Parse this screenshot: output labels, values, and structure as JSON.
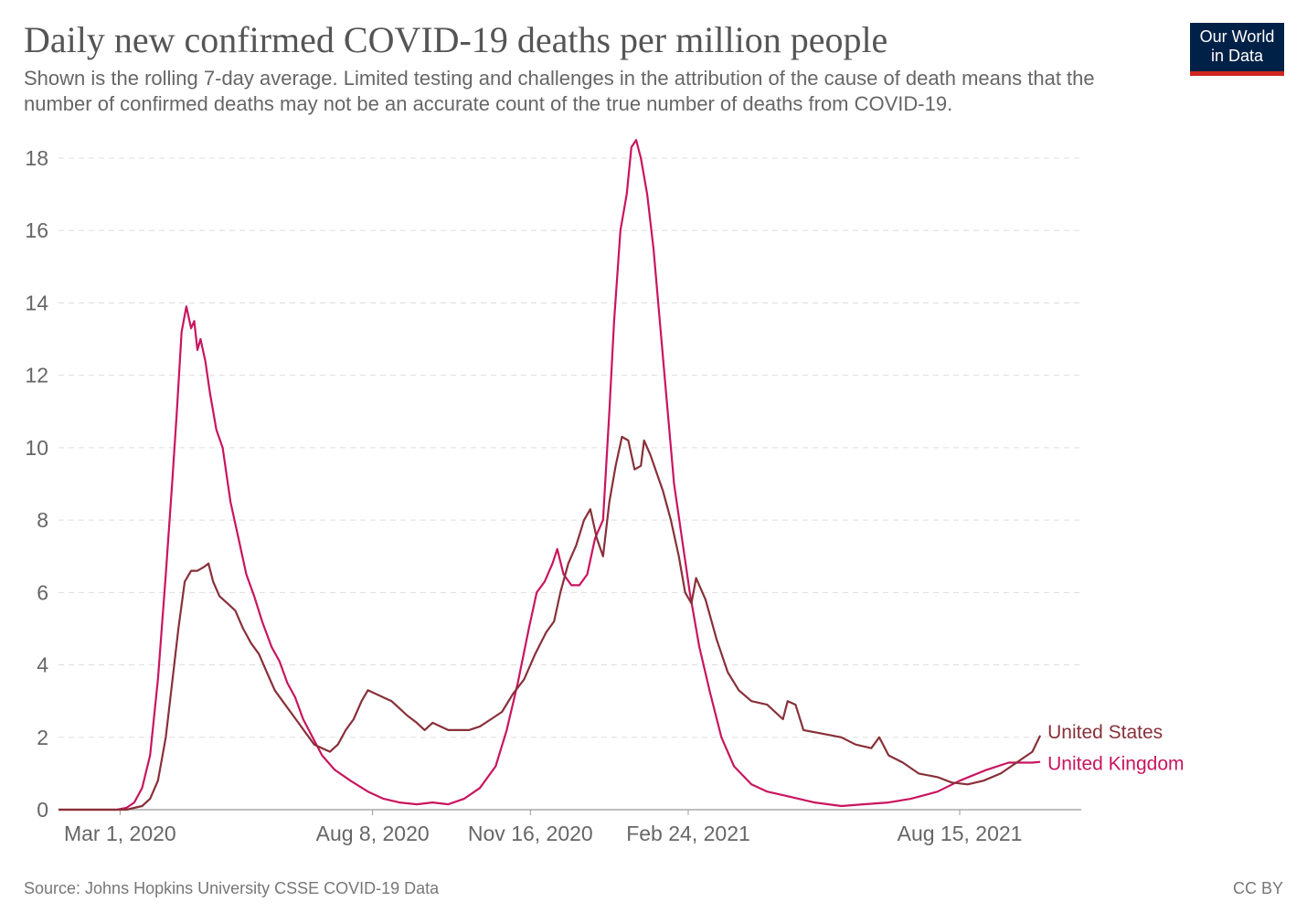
{
  "title": "Daily new confirmed COVID-19 deaths per million people",
  "subtitle": "Shown is the rolling 7-day average. Limited testing and challenges in the attribution of the cause of death means that the number of confirmed deaths may not be an accurate count of the true number of deaths from COVID-19.",
  "logo": {
    "line1": "Our World",
    "line2": "in Data",
    "bg_color": "#002147",
    "accent_color": "#ce261e"
  },
  "source": "Source: Johns Hopkins University CSSE COVID-19 Data",
  "license": "CC BY",
  "chart_data": {
    "type": "line",
    "title": "Daily new confirmed COVID-19 deaths per million people",
    "xlabel": "",
    "ylabel": "",
    "x_range": [
      "2020-01-22",
      "2021-10-31"
    ],
    "ylim": [
      0,
      18
    ],
    "y_ticks": [
      0,
      2,
      4,
      6,
      8,
      10,
      12,
      14,
      16,
      18
    ],
    "x_ticks": [
      {
        "date": "2020-03-01",
        "label": "Mar 1, 2020"
      },
      {
        "date": "2020-08-08",
        "label": "Aug 8, 2020"
      },
      {
        "date": "2020-11-16",
        "label": "Nov 16, 2020"
      },
      {
        "date": "2021-02-24",
        "label": "Feb 24, 2021"
      },
      {
        "date": "2021-08-15",
        "label": "Aug 15, 2021"
      }
    ],
    "grid": "horizontal dashed",
    "legend": "right, inline at line ends",
    "series": [
      {
        "name": "United Kingdom",
        "color": "#c8155f",
        "points": [
          [
            "2020-01-22",
            0
          ],
          [
            "2020-02-28",
            0
          ],
          [
            "2020-03-05",
            0.05
          ],
          [
            "2020-03-10",
            0.2
          ],
          [
            "2020-03-15",
            0.6
          ],
          [
            "2020-03-20",
            1.5
          ],
          [
            "2020-03-25",
            3.6
          ],
          [
            "2020-03-30",
            6.5
          ],
          [
            "2020-04-03",
            9.0
          ],
          [
            "2020-04-06",
            11.0
          ],
          [
            "2020-04-09",
            13.2
          ],
          [
            "2020-04-12",
            13.9
          ],
          [
            "2020-04-15",
            13.3
          ],
          [
            "2020-04-17",
            13.5
          ],
          [
            "2020-04-19",
            12.7
          ],
          [
            "2020-04-21",
            13.0
          ],
          [
            "2020-04-24",
            12.4
          ],
          [
            "2020-04-27",
            11.5
          ],
          [
            "2020-05-01",
            10.5
          ],
          [
            "2020-05-05",
            10.0
          ],
          [
            "2020-05-10",
            8.5
          ],
          [
            "2020-05-15",
            7.5
          ],
          [
            "2020-05-20",
            6.5
          ],
          [
            "2020-05-25",
            5.9
          ],
          [
            "2020-05-30",
            5.2
          ],
          [
            "2020-06-05",
            4.5
          ],
          [
            "2020-06-10",
            4.1
          ],
          [
            "2020-06-15",
            3.5
          ],
          [
            "2020-06-20",
            3.1
          ],
          [
            "2020-06-25",
            2.5
          ],
          [
            "2020-07-01",
            2.0
          ],
          [
            "2020-07-07",
            1.5
          ],
          [
            "2020-07-15",
            1.1
          ],
          [
            "2020-07-25",
            0.8
          ],
          [
            "2020-08-05",
            0.5
          ],
          [
            "2020-08-15",
            0.3
          ],
          [
            "2020-08-25",
            0.2
          ],
          [
            "2020-09-05",
            0.15
          ],
          [
            "2020-09-15",
            0.2
          ],
          [
            "2020-09-25",
            0.15
          ],
          [
            "2020-10-05",
            0.3
          ],
          [
            "2020-10-15",
            0.6
          ],
          [
            "2020-10-25",
            1.2
          ],
          [
            "2020-11-01",
            2.2
          ],
          [
            "2020-11-08",
            3.5
          ],
          [
            "2020-11-15",
            5.0
          ],
          [
            "2020-11-20",
            6.0
          ],
          [
            "2020-11-25",
            6.3
          ],
          [
            "2020-11-30",
            6.8
          ],
          [
            "2020-12-03",
            7.2
          ],
          [
            "2020-12-07",
            6.5
          ],
          [
            "2020-12-12",
            6.2
          ],
          [
            "2020-12-17",
            6.2
          ],
          [
            "2020-12-22",
            6.5
          ],
          [
            "2020-12-27",
            7.5
          ],
          [
            "2021-01-01",
            8.0
          ],
          [
            "2021-01-05",
            11.0
          ],
          [
            "2021-01-08",
            13.5
          ],
          [
            "2021-01-12",
            16.0
          ],
          [
            "2021-01-16",
            17.0
          ],
          [
            "2021-01-19",
            18.3
          ],
          [
            "2021-01-22",
            18.5
          ],
          [
            "2021-01-25",
            18.0
          ],
          [
            "2021-01-29",
            17.0
          ],
          [
            "2021-02-02",
            15.5
          ],
          [
            "2021-02-06",
            13.5
          ],
          [
            "2021-02-10",
            11.5
          ],
          [
            "2021-02-15",
            9.0
          ],
          [
            "2021-02-20",
            7.5
          ],
          [
            "2021-02-25",
            6.0
          ],
          [
            "2021-03-03",
            4.5
          ],
          [
            "2021-03-10",
            3.2
          ],
          [
            "2021-03-17",
            2.0
          ],
          [
            "2021-03-25",
            1.2
          ],
          [
            "2021-04-05",
            0.7
          ],
          [
            "2021-04-15",
            0.5
          ],
          [
            "2021-04-30",
            0.35
          ],
          [
            "2021-05-15",
            0.2
          ],
          [
            "2021-06-01",
            0.1
          ],
          [
            "2021-06-15",
            0.15
          ],
          [
            "2021-07-01",
            0.2
          ],
          [
            "2021-07-15",
            0.3
          ],
          [
            "2021-08-01",
            0.5
          ],
          [
            "2021-08-15",
            0.8
          ],
          [
            "2021-09-01",
            1.1
          ],
          [
            "2021-09-15",
            1.3
          ],
          [
            "2021-09-30",
            1.3
          ],
          [
            "2021-10-05",
            1.32
          ]
        ]
      },
      {
        "name": "United States",
        "color": "#883039",
        "points": [
          [
            "2020-01-22",
            0
          ],
          [
            "2020-03-05",
            0
          ],
          [
            "2020-03-10",
            0.05
          ],
          [
            "2020-03-15",
            0.1
          ],
          [
            "2020-03-20",
            0.3
          ],
          [
            "2020-03-25",
            0.8
          ],
          [
            "2020-03-30",
            2.0
          ],
          [
            "2020-04-03",
            3.5
          ],
          [
            "2020-04-07",
            5.0
          ],
          [
            "2020-04-11",
            6.3
          ],
          [
            "2020-04-15",
            6.6
          ],
          [
            "2020-04-19",
            6.6
          ],
          [
            "2020-04-23",
            6.7
          ],
          [
            "2020-04-26",
            6.8
          ],
          [
            "2020-04-29",
            6.3
          ],
          [
            "2020-05-03",
            5.9
          ],
          [
            "2020-05-08",
            5.7
          ],
          [
            "2020-05-13",
            5.5
          ],
          [
            "2020-05-18",
            5.0
          ],
          [
            "2020-05-23",
            4.6
          ],
          [
            "2020-05-28",
            4.3
          ],
          [
            "2020-06-02",
            3.8
          ],
          [
            "2020-06-07",
            3.3
          ],
          [
            "2020-06-12",
            3.0
          ],
          [
            "2020-06-17",
            2.7
          ],
          [
            "2020-06-22",
            2.4
          ],
          [
            "2020-06-27",
            2.1
          ],
          [
            "2020-07-02",
            1.8
          ],
          [
            "2020-07-07",
            1.7
          ],
          [
            "2020-07-12",
            1.6
          ],
          [
            "2020-07-17",
            1.8
          ],
          [
            "2020-07-22",
            2.2
          ],
          [
            "2020-07-27",
            2.5
          ],
          [
            "2020-08-01",
            3.0
          ],
          [
            "2020-08-05",
            3.3
          ],
          [
            "2020-08-10",
            3.2
          ],
          [
            "2020-08-15",
            3.1
          ],
          [
            "2020-08-20",
            3.0
          ],
          [
            "2020-08-25",
            2.8
          ],
          [
            "2020-08-30",
            2.6
          ],
          [
            "2020-09-05",
            2.4
          ],
          [
            "2020-09-10",
            2.2
          ],
          [
            "2020-09-15",
            2.4
          ],
          [
            "2020-09-20",
            2.3
          ],
          [
            "2020-09-25",
            2.2
          ],
          [
            "2020-10-01",
            2.2
          ],
          [
            "2020-10-08",
            2.2
          ],
          [
            "2020-10-15",
            2.3
          ],
          [
            "2020-10-22",
            2.5
          ],
          [
            "2020-10-29",
            2.7
          ],
          [
            "2020-11-05",
            3.2
          ],
          [
            "2020-11-12",
            3.6
          ],
          [
            "2020-11-19",
            4.3
          ],
          [
            "2020-11-26",
            4.9
          ],
          [
            "2020-12-01",
            5.2
          ],
          [
            "2020-12-05",
            6.0
          ],
          [
            "2020-12-10",
            6.8
          ],
          [
            "2020-12-15",
            7.3
          ],
          [
            "2020-12-20",
            8.0
          ],
          [
            "2020-12-24",
            8.3
          ],
          [
            "2020-12-28",
            7.5
          ],
          [
            "2021-01-01",
            7.0
          ],
          [
            "2021-01-05",
            8.5
          ],
          [
            "2021-01-09",
            9.5
          ],
          [
            "2021-01-13",
            10.3
          ],
          [
            "2021-01-17",
            10.2
          ],
          [
            "2021-01-21",
            9.4
          ],
          [
            "2021-01-25",
            9.5
          ],
          [
            "2021-01-27",
            10.2
          ],
          [
            "2021-01-31",
            9.8
          ],
          [
            "2021-02-04",
            9.3
          ],
          [
            "2021-02-08",
            8.8
          ],
          [
            "2021-02-13",
            8.0
          ],
          [
            "2021-02-18",
            7.0
          ],
          [
            "2021-02-22",
            6.0
          ],
          [
            "2021-02-26",
            5.7
          ],
          [
            "2021-03-01",
            6.4
          ],
          [
            "2021-03-07",
            5.8
          ],
          [
            "2021-03-14",
            4.7
          ],
          [
            "2021-03-21",
            3.8
          ],
          [
            "2021-03-28",
            3.3
          ],
          [
            "2021-04-05",
            3.0
          ],
          [
            "2021-04-15",
            2.9
          ],
          [
            "2021-04-25",
            2.5
          ],
          [
            "2021-04-28",
            3.0
          ],
          [
            "2021-05-03",
            2.9
          ],
          [
            "2021-05-08",
            2.2
          ],
          [
            "2021-05-20",
            2.1
          ],
          [
            "2021-06-01",
            2.0
          ],
          [
            "2021-06-10",
            1.8
          ],
          [
            "2021-06-20",
            1.7
          ],
          [
            "2021-06-25",
            2.0
          ],
          [
            "2021-07-01",
            1.5
          ],
          [
            "2021-07-10",
            1.3
          ],
          [
            "2021-07-20",
            1.0
          ],
          [
            "2021-08-01",
            0.9
          ],
          [
            "2021-08-10",
            0.75
          ],
          [
            "2021-08-20",
            0.7
          ],
          [
            "2021-08-30",
            0.8
          ],
          [
            "2021-09-10",
            1.0
          ],
          [
            "2021-09-20",
            1.3
          ],
          [
            "2021-09-30",
            1.6
          ],
          [
            "2021-10-05",
            2.05
          ]
        ]
      }
    ]
  }
}
